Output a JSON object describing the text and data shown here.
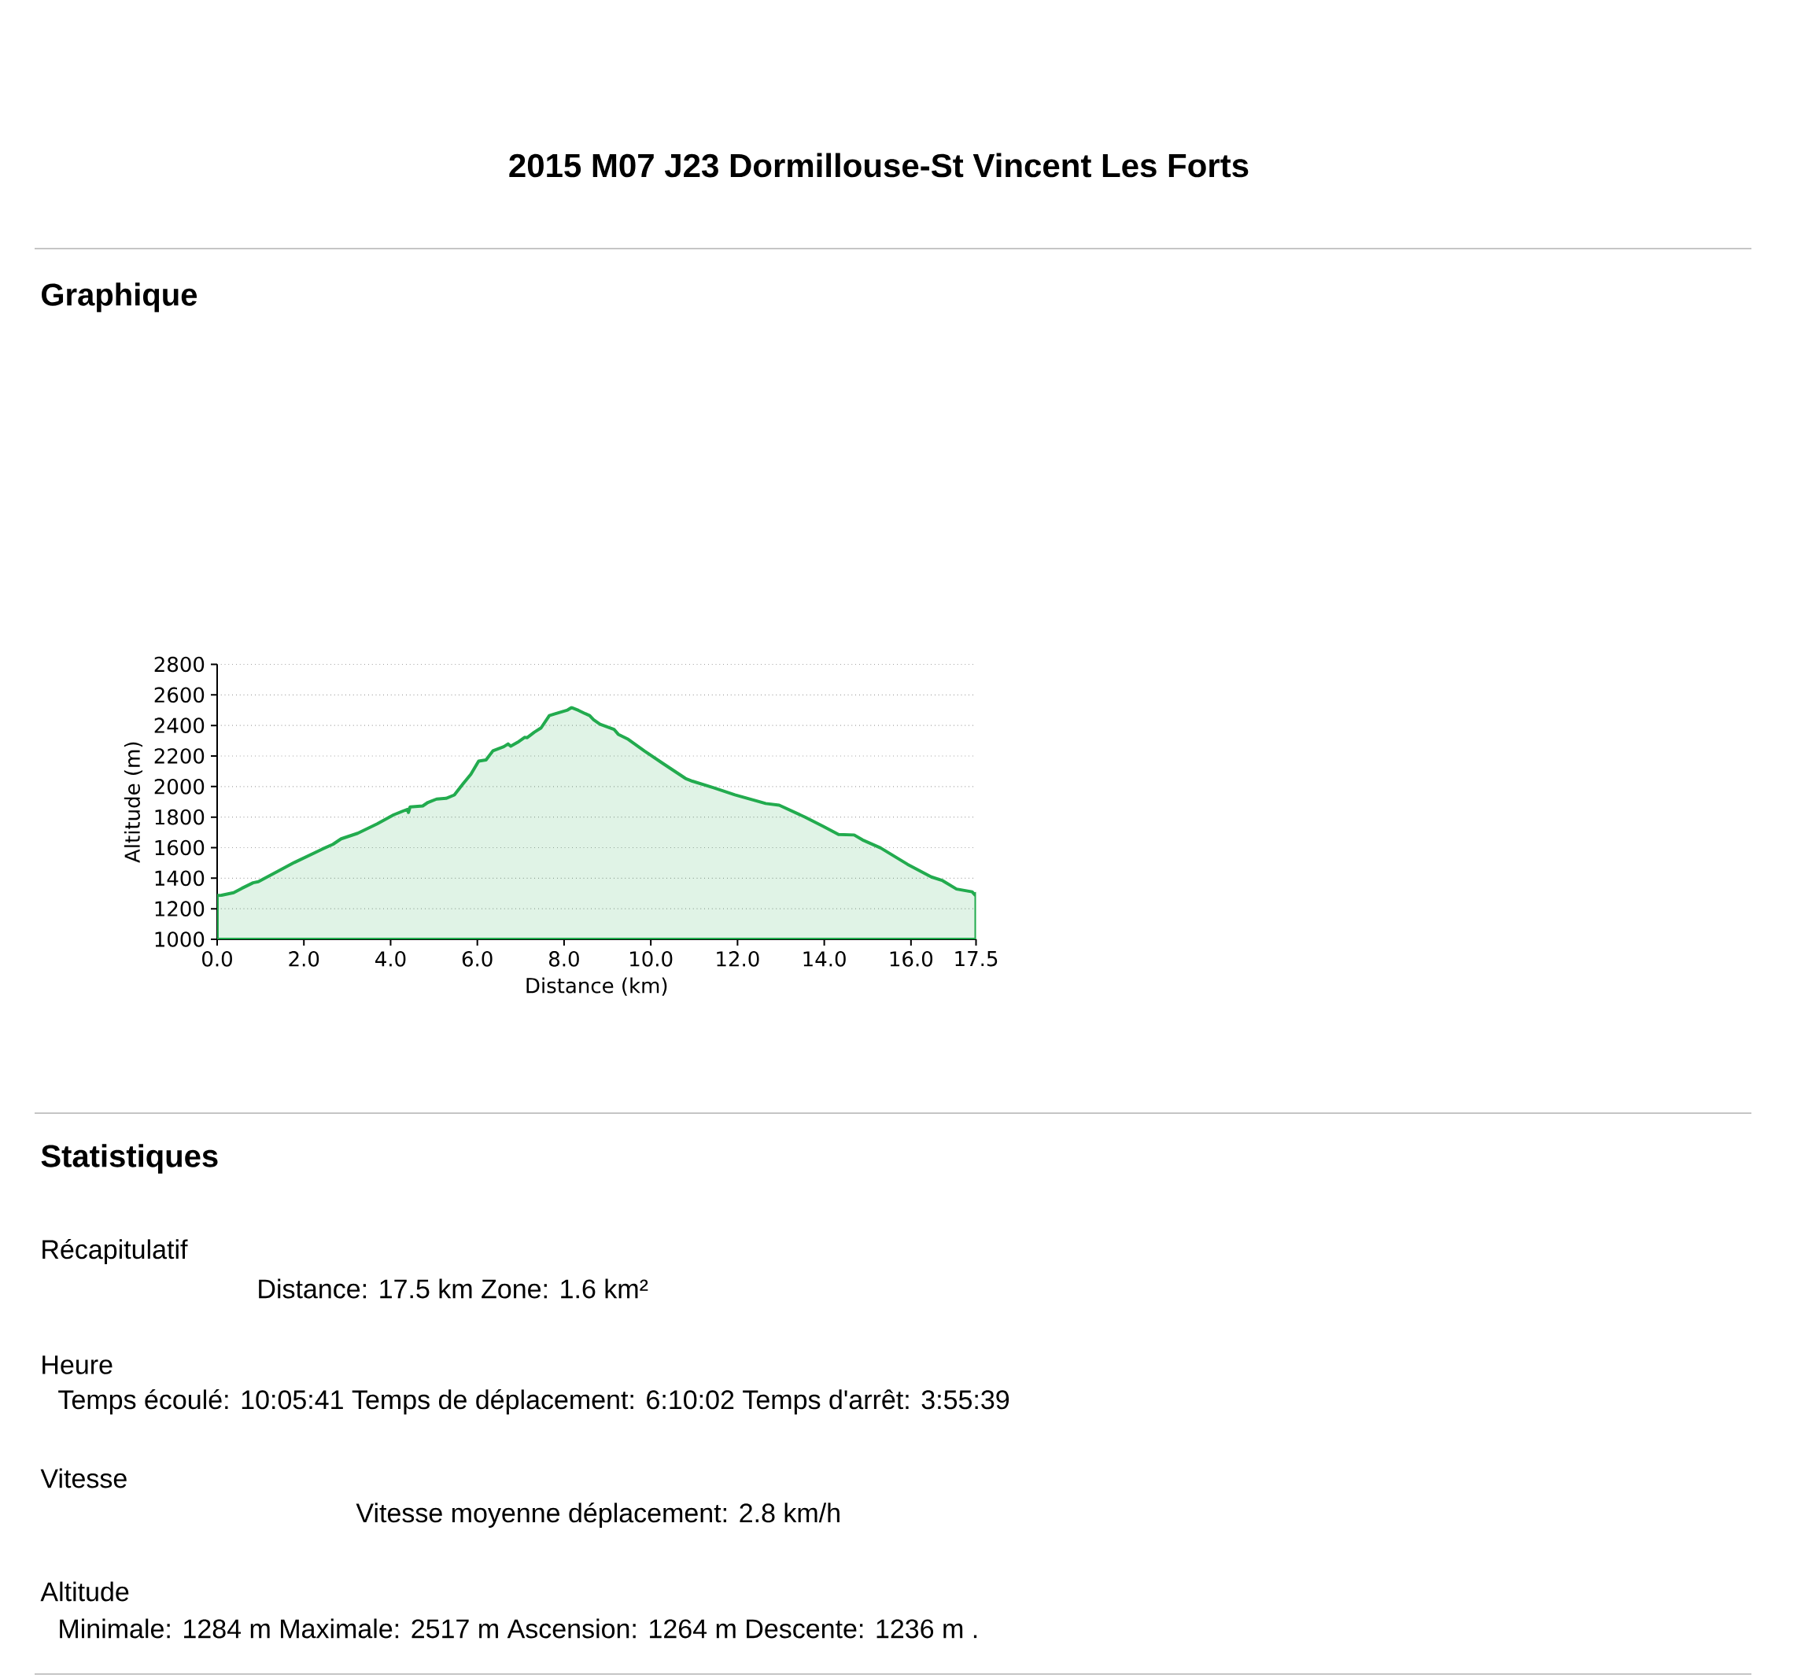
{
  "chart_data": {
    "type": "area",
    "title": "2015 M07 J23 Dormillouse-St Vincent Les Forts",
    "xlabel": "Distance (km)",
    "ylabel": "Altitude (m)",
    "xlim": [
      0,
      17.5
    ],
    "ylim": [
      1000,
      2800
    ],
    "xticks": [
      {
        "value": 0,
        "label": "0.0"
      },
      {
        "value": 2,
        "label": "2.0"
      },
      {
        "value": 4,
        "label": "4.0"
      },
      {
        "value": 6,
        "label": "6.0"
      },
      {
        "value": 8,
        "label": "8.0"
      },
      {
        "value": 10,
        "label": "10.0"
      },
      {
        "value": 12,
        "label": "12.0"
      },
      {
        "value": 14,
        "label": "14.0"
      },
      {
        "value": 16,
        "label": "16.0"
      },
      17.5
    ],
    "yticks": [
      1000,
      1200,
      1400,
      1600,
      1800,
      2000,
      2200,
      2400,
      2600,
      2800
    ],
    "grid": "y",
    "x": [
      0,
      0.1,
      0.38,
      0.57,
      0.83,
      0.95,
      1.4,
      1.78,
      2.42,
      2.67,
      2.86,
      3.24,
      3.69,
      4.07,
      4.39,
      4.41,
      4.45,
      4.74,
      4.86,
      5.06,
      5.28,
      5.47,
      5.66,
      5.85,
      6.03,
      6.2,
      6.36,
      6.61,
      6.71,
      6.77,
      6.93,
      7.09,
      7.15,
      7.31,
      7.47,
      7.66,
      7.76,
      8.08,
      8.17,
      8.33,
      8.49,
      8.59,
      8.68,
      8.83,
      9.15,
      9.25,
      9.48,
      9.86,
      10.28,
      10.8,
      10.96,
      11.45,
      11.94,
      12.65,
      12.96,
      13.55,
      13.97,
      14.33,
      14.69,
      14.88,
      15.3,
      15.92,
      16.47,
      16.73,
      17.05,
      17.41,
      17.48,
      17.5
    ],
    "series": [
      {
        "color": "#22ab4e",
        "values": [
          1287,
          1288,
          1305,
          1334,
          1370,
          1377,
          1445,
          1503,
          1590,
          1622,
          1658,
          1694,
          1756,
          1815,
          1851,
          1830,
          1867,
          1873,
          1896,
          1918,
          1923,
          1945,
          2014,
          2080,
          2167,
          2174,
          2234,
          2261,
          2279,
          2264,
          2290,
          2322,
          2320,
          2355,
          2384,
          2465,
          2474,
          2501,
          2517,
          2499,
          2477,
          2465,
          2438,
          2408,
          2375,
          2342,
          2309,
          2232,
          2151,
          2053,
          2035,
          1992,
          1946,
          1889,
          1878,
          1801,
          1740,
          1686,
          1683,
          1651,
          1598,
          1491,
          1408,
          1384,
          1329,
          1311,
          1289,
          1300
        ]
      }
    ],
    "annotations": [
      "Graphique",
      "Statistiques",
      "Récapitulatif",
      "Distance: 17.5 km  Zone: 1.6 km²",
      "Heure",
      "Temps écoulé: 10:05:41  Temps de déplacement: 6:10:02  Temps d'arrêt: 3:55:39",
      "Vitesse",
      "Vitesse moyenne déplacement: 2.8 km/h",
      "Altitude",
      "Minimale: 1284 m  Maximale: 2517 m  Ascension: 1264 m  Descente: 1236 m  ."
    ]
  }
}
